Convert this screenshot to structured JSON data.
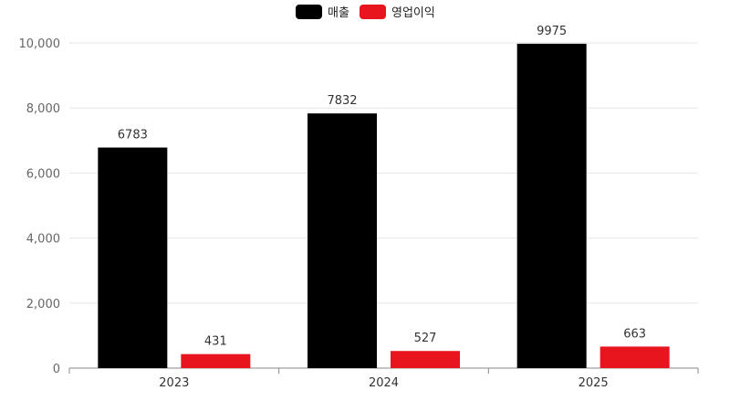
{
  "chart_data": {
    "type": "bar",
    "categories": [
      "2023",
      "2024",
      "2025"
    ],
    "series": [
      {
        "name": "매출",
        "color": "#000000",
        "values": [
          6783,
          7832,
          9975
        ]
      },
      {
        "name": "영업이익",
        "color": "#e8141e",
        "values": [
          431,
          527,
          663
        ]
      }
    ],
    "ylim": [
      0,
      10000
    ],
    "yticks": [
      0,
      2000,
      4000,
      6000,
      8000,
      10000
    ],
    "ytick_labels": [
      "0",
      "2,000",
      "4,000",
      "6,000",
      "8,000",
      "10,000"
    ],
    "grid": true,
    "legend_position": "top-center",
    "data_labels": true
  }
}
